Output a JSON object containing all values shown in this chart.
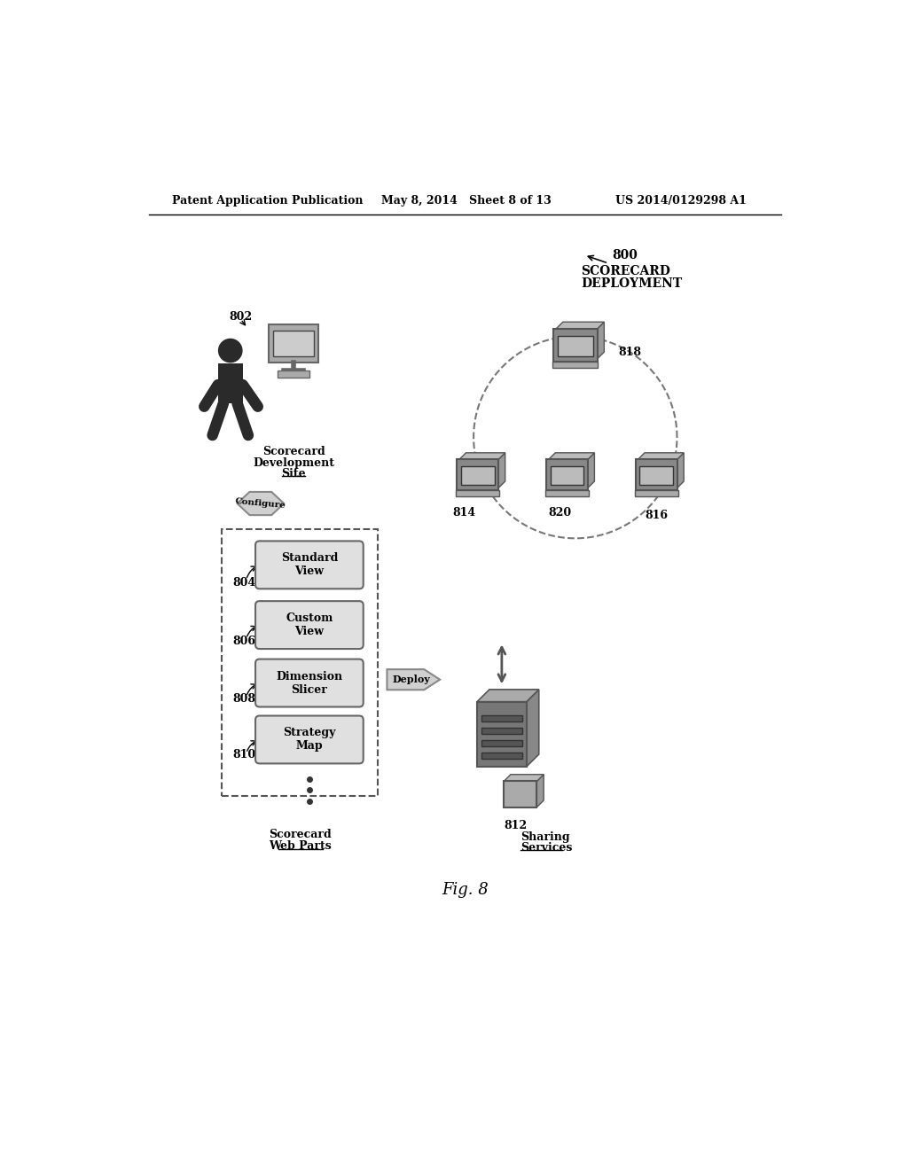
{
  "bg_color": "#ffffff",
  "header_left": "Patent Application Publication",
  "header_mid": "May 8, 2014   Sheet 8 of 13",
  "header_right": "US 2014/0129298 A1",
  "fig_label": "Fig. 8",
  "title_800": "800",
  "title_scorecard": "SCORECARD",
  "title_deployment": "DEPLOYMENT",
  "label_802": "802",
  "label_configure": "Configure",
  "label_804": "804",
  "label_806": "806",
  "label_808": "808",
  "label_810": "810",
  "label_standard_view": "Standard\nView",
  "label_custom_view": "Custom\nView",
  "label_dimension_slicer": "Dimension\nSlicer",
  "label_strategy_map": "Strategy\nMap",
  "label_deploy": "Deploy",
  "label_812": "812",
  "label_sharing_line1": "Sharing",
  "label_sharing_line2": "Services",
  "label_814": "814",
  "label_816": "816",
  "label_818": "818",
  "label_820": "820"
}
